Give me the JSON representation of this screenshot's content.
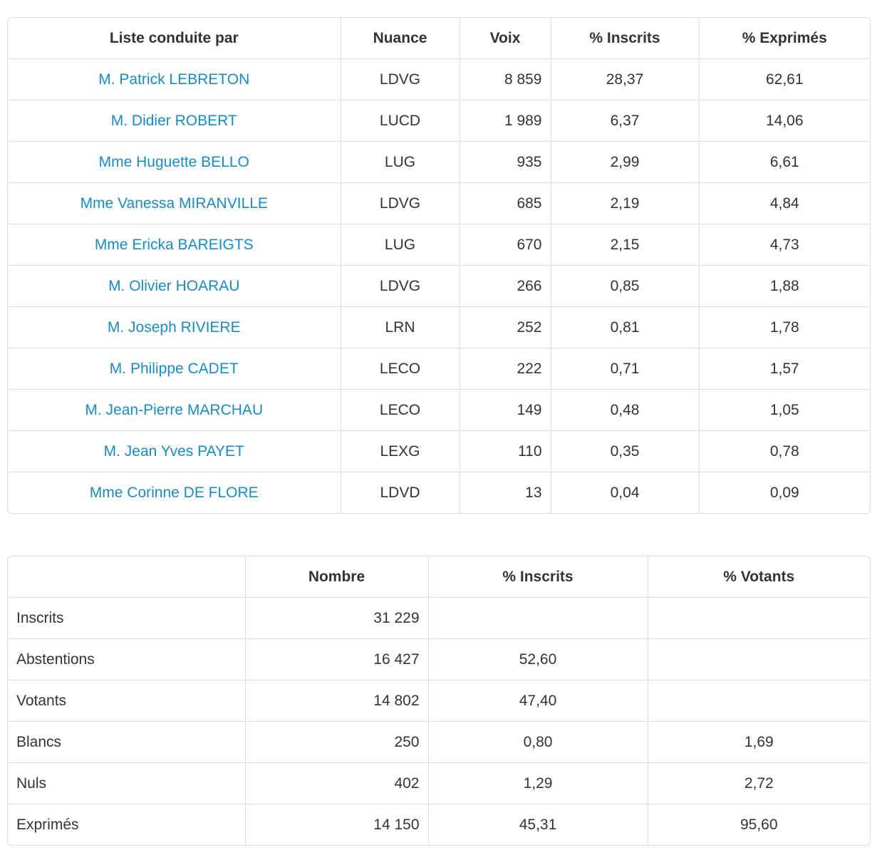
{
  "results": {
    "headers": [
      "Liste conduite par",
      "Nuance",
      "Voix",
      "% Inscrits",
      "% Exprimés"
    ],
    "rows": [
      {
        "name": "M. Patrick LEBRETON",
        "nuance": "LDVG",
        "voix": "8 859",
        "inscrits": "28,37",
        "exprimes": "62,61"
      },
      {
        "name": "M. Didier ROBERT",
        "nuance": "LUCD",
        "voix": "1 989",
        "inscrits": "6,37",
        "exprimes": "14,06"
      },
      {
        "name": "Mme Huguette BELLO",
        "nuance": "LUG",
        "voix": "935",
        "inscrits": "2,99",
        "exprimes": "6,61"
      },
      {
        "name": "Mme Vanessa MIRANVILLE",
        "nuance": "LDVG",
        "voix": "685",
        "inscrits": "2,19",
        "exprimes": "4,84"
      },
      {
        "name": "Mme Ericka BAREIGTS",
        "nuance": "LUG",
        "voix": "670",
        "inscrits": "2,15",
        "exprimes": "4,73"
      },
      {
        "name": "M. Olivier HOARAU",
        "nuance": "LDVG",
        "voix": "266",
        "inscrits": "0,85",
        "exprimes": "1,88"
      },
      {
        "name": "M. Joseph RIVIERE",
        "nuance": "LRN",
        "voix": "252",
        "inscrits": "0,81",
        "exprimes": "1,78"
      },
      {
        "name": "M. Philippe CADET",
        "nuance": "LECO",
        "voix": "222",
        "inscrits": "0,71",
        "exprimes": "1,57"
      },
      {
        "name": "M. Jean-Pierre MARCHAU",
        "nuance": "LECO",
        "voix": "149",
        "inscrits": "0,48",
        "exprimes": "1,05"
      },
      {
        "name": "M. Jean Yves PAYET",
        "nuance": "LEXG",
        "voix": "110",
        "inscrits": "0,35",
        "exprimes": "0,78"
      },
      {
        "name": "Mme Corinne DE FLORE",
        "nuance": "LDVD",
        "voix": "13",
        "inscrits": "0,04",
        "exprimes": "0,09"
      }
    ]
  },
  "summary": {
    "headers": [
      "",
      "Nombre",
      "% Inscrits",
      "% Votants"
    ],
    "rows": [
      {
        "label": "Inscrits",
        "nombre": "31 229",
        "inscrits": "",
        "votants": ""
      },
      {
        "label": "Abstentions",
        "nombre": "16 427",
        "inscrits": "52,60",
        "votants": ""
      },
      {
        "label": "Votants",
        "nombre": "14 802",
        "inscrits": "47,40",
        "votants": ""
      },
      {
        "label": "Blancs",
        "nombre": "250",
        "inscrits": "0,80",
        "votants": "1,69"
      },
      {
        "label": "Nuls",
        "nombre": "402",
        "inscrits": "1,29",
        "votants": "2,72"
      },
      {
        "label": "Exprimés",
        "nombre": "14 150",
        "inscrits": "45,31",
        "votants": "95,60"
      }
    ]
  },
  "colors": {
    "link": "#1a8ac4",
    "border": "#dddddd",
    "text": "#333333"
  }
}
